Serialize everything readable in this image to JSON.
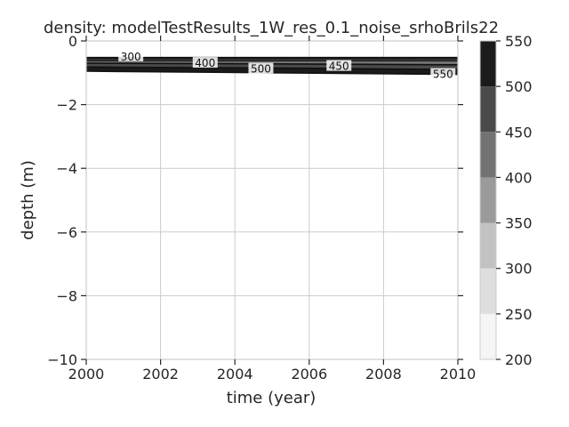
{
  "chart_data": {
    "type": "contour",
    "title": "density: modelTestResults_1W_res_0.1_noise_srhoBrils22",
    "xlabel": "time (year)",
    "ylabel": "depth (m)",
    "xlim": [
      2000,
      2010
    ],
    "ylim": [
      -10,
      0
    ],
    "x_ticks": [
      2000,
      2002,
      2004,
      2006,
      2008,
      2010
    ],
    "y_ticks": [
      0,
      -2,
      -4,
      -6,
      -8,
      -10
    ],
    "y_tick_labels": [
      "0",
      "−2",
      "−4",
      "−6",
      "−8",
      "−10"
    ],
    "grid": true,
    "colorbar": {
      "levels": [
        200,
        250,
        300,
        350,
        400,
        450,
        500,
        550
      ],
      "colors": [
        "#f5f5f5",
        "#dedede",
        "#c2c2c2",
        "#9a9a9a",
        "#737373",
        "#4a4a4a",
        "#1b1b1b"
      ]
    },
    "contour_lines": [
      {
        "level": 300,
        "depths": [
          -0.52,
          -0.52,
          -0.52
        ]
      },
      {
        "level": 350,
        "depths": [
          -0.56,
          -0.56,
          -0.56
        ]
      },
      {
        "level": 400,
        "depths": [
          -0.62,
          -0.62,
          -0.62
        ]
      },
      {
        "level": 450,
        "depths": [
          -0.7,
          -0.72,
          -0.75
        ]
      },
      {
        "level": 500,
        "depths": [
          -0.82,
          -0.85,
          -0.9
        ]
      },
      {
        "level": 550,
        "depths": [
          -0.95,
          -1.0,
          -1.05
        ]
      }
    ],
    "contour_labels": [
      {
        "text": "300",
        "x": 2001.2,
        "y": -0.5
      },
      {
        "text": "400",
        "x": 2003.2,
        "y": -0.7
      },
      {
        "text": "500",
        "x": 2004.7,
        "y": -0.88
      },
      {
        "text": "450",
        "x": 2006.8,
        "y": -0.8
      },
      {
        "text": "550",
        "x": 2009.6,
        "y": -1.05
      }
    ]
  }
}
